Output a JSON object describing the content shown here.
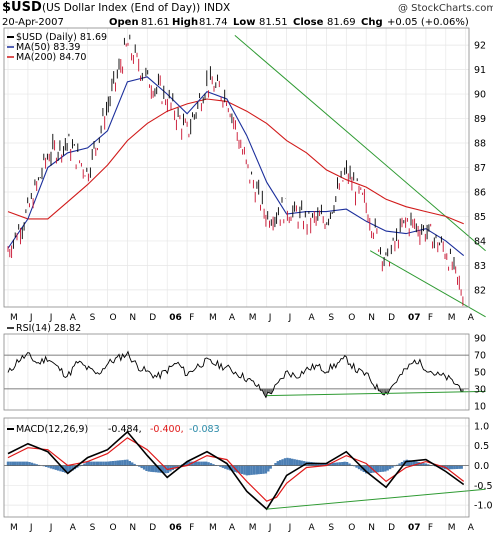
{
  "header": {
    "symbol": "$USD",
    "description": "(US Dollar Index (End of Day))",
    "exchange": "INDX",
    "source": "@ StockCharts.com",
    "date": "20-Apr-2007",
    "open_label": "Open",
    "open": "81.61",
    "high_label": "High",
    "high": "81.74",
    "low_label": "Low",
    "low": "81.51",
    "close_label": "Close",
    "close": "81.69",
    "chg_label": "Chg",
    "chg": "+0.05 (+0.06%)"
  },
  "legend": {
    "price": "$USD (Daily) 81.69",
    "ma50": "MA(50) 83.39",
    "ma200": "MA(200) 84.70",
    "rsi": "RSI(14) 28.82",
    "macd_name": "MACD(12,26,9)",
    "macd_v1": "-0.484,",
    "macd_v2": "-0.400,",
    "macd_v3": "-0.083"
  },
  "colors": {
    "price": "#000000",
    "price_down": "#c8102e",
    "ma50": "#1c2f9c",
    "ma200": "#d11b1b",
    "trend": "#2e9a32",
    "histogram": "#4c7fb4",
    "signal": "#e01a1a",
    "macd_v2": "#e01a1a",
    "macd_v3": "#2a8aa8",
    "rsi_fill": "#777777"
  },
  "chart_data": [
    {
      "type": "line",
      "name": "price",
      "x_ticks": [
        "M",
        "J",
        "J",
        "A",
        "S",
        "O",
        "N",
        "D",
        "06",
        "F",
        "M",
        "A",
        "M",
        "J",
        "J",
        "A",
        "S",
        "O",
        "N",
        "D",
        "07",
        "F",
        "M",
        "A"
      ],
      "y_ticks": [
        82,
        83,
        84,
        85,
        86,
        87,
        88,
        89,
        90,
        91,
        92
      ],
      "ylim": [
        81.3,
        92.7
      ],
      "series": [
        {
          "name": "$USD (Daily) 81.69",
          "points": [
            [
              0,
              83.6
            ],
            [
              1,
              85.2
            ],
            [
              2,
              87.5
            ],
            [
              3,
              88.0
            ],
            [
              4,
              86.8
            ],
            [
              5,
              89.5
            ],
            [
              6,
              92.0
            ],
            [
              7,
              90.6
            ],
            [
              8,
              89.8
            ],
            [
              9,
              88.4
            ],
            [
              10,
              90.5
            ],
            [
              11,
              89.9
            ],
            [
              12,
              87.0
            ],
            [
              13,
              85.0
            ],
            [
              14,
              85.3
            ],
            [
              15,
              84.8
            ],
            [
              16,
              84.9
            ],
            [
              17,
              86.8
            ],
            [
              18,
              85.4
            ],
            [
              19,
              83.1
            ],
            [
              20,
              84.8
            ],
            [
              21,
              84.4
            ],
            [
              22,
              83.6
            ],
            [
              22.9,
              81.7
            ]
          ]
        },
        {
          "name": "MA(50) 83.39",
          "points": [
            [
              0,
              83.7
            ],
            [
              1,
              84.9
            ],
            [
              2,
              87.0
            ],
            [
              3,
              87.6
            ],
            [
              4,
              87.8
            ],
            [
              5,
              88.5
            ],
            [
              6,
              90.5
            ],
            [
              7,
              90.7
            ],
            [
              8,
              90.0
            ],
            [
              9,
              89.2
            ],
            [
              10,
              90.1
            ],
            [
              11,
              89.8
            ],
            [
              12,
              88.3
            ],
            [
              13,
              86.4
            ],
            [
              14,
              85.1
            ],
            [
              15,
              85.2
            ],
            [
              16,
              85.2
            ],
            [
              17,
              85.3
            ],
            [
              18,
              84.8
            ],
            [
              19,
              84.4
            ],
            [
              20,
              84.3
            ],
            [
              21,
              84.5
            ],
            [
              22,
              84.0
            ],
            [
              22.9,
              83.4
            ]
          ]
        },
        {
          "name": "MA(200) 84.70",
          "points": [
            [
              0,
              85.2
            ],
            [
              1,
              84.9
            ],
            [
              2,
              84.9
            ],
            [
              3,
              85.6
            ],
            [
              4,
              86.3
            ],
            [
              5,
              87.1
            ],
            [
              6,
              88.1
            ],
            [
              7,
              88.8
            ],
            [
              8,
              89.3
            ],
            [
              9,
              89.6
            ],
            [
              10,
              89.8
            ],
            [
              11,
              89.7
            ],
            [
              12,
              89.3
            ],
            [
              13,
              88.8
            ],
            [
              14,
              88.1
            ],
            [
              15,
              87.6
            ],
            [
              16,
              86.9
            ],
            [
              17,
              86.5
            ],
            [
              18,
              86.2
            ],
            [
              19,
              85.7
            ],
            [
              20,
              85.4
            ],
            [
              21,
              85.2
            ],
            [
              22,
              85.0
            ],
            [
              22.9,
              84.7
            ]
          ]
        }
      ],
      "trendlines": [
        [
          [
            11.4,
            92.4
          ],
          [
            24,
            83.6
          ]
        ],
        [
          [
            18.2,
            83.6
          ],
          [
            24,
            80.9
          ]
        ]
      ]
    },
    {
      "type": "line",
      "name": "rsi",
      "y_ticks": [
        10,
        30,
        50,
        70,
        90
      ],
      "ylim": [
        5,
        95
      ],
      "reference_lines": [
        30,
        70
      ],
      "series": [
        {
          "name": "RSI(14) 28.82",
          "points": [
            [
              0,
              48
            ],
            [
              0.5,
              64
            ],
            [
              1,
              70
            ],
            [
              1.5,
              60
            ],
            [
              2,
              67
            ],
            [
              2.5,
              55
            ],
            [
              3,
              45
            ],
            [
              3.5,
              62
            ],
            [
              4,
              54
            ],
            [
              4.5,
              47
            ],
            [
              5,
              60
            ],
            [
              5.5,
              66
            ],
            [
              6,
              72
            ],
            [
              6.5,
              57
            ],
            [
              7,
              50
            ],
            [
              7.5,
              44
            ],
            [
              8,
              52
            ],
            [
              8.5,
              61
            ],
            [
              9,
              47
            ],
            [
              9.5,
              57
            ],
            [
              10,
              63
            ],
            [
              10.5,
              59
            ],
            [
              11,
              55
            ],
            [
              11.5,
              49
            ],
            [
              12,
              42
            ],
            [
              12.5,
              34
            ],
            [
              13,
              22
            ],
            [
              13.5,
              33
            ],
            [
              14,
              50
            ],
            [
              14.5,
              45
            ],
            [
              15,
              53
            ],
            [
              15.5,
              57
            ],
            [
              16,
              52
            ],
            [
              16.5,
              59
            ],
            [
              17,
              66
            ],
            [
              17.5,
              52
            ],
            [
              18,
              47
            ],
            [
              18.5,
              32
            ],
            [
              19,
              25
            ],
            [
              19.5,
              39
            ],
            [
              20,
              53
            ],
            [
              20.5,
              64
            ],
            [
              21,
              55
            ],
            [
              21.5,
              47
            ],
            [
              22,
              44
            ],
            [
              22.5,
              36
            ],
            [
              22.9,
              29
            ]
          ]
        }
      ],
      "trendlines": [
        [
          [
            13,
            22
          ],
          [
            24,
            27
          ]
        ]
      ]
    },
    {
      "type": "line",
      "name": "macd",
      "y_ticks": [
        -1.0,
        -0.5,
        0.0,
        0.5,
        1.0
      ],
      "ylim": [
        -1.3,
        1.2
      ],
      "series": [
        {
          "name": "MACD",
          "points": [
            [
              0,
              0.3
            ],
            [
              1,
              0.55
            ],
            [
              2,
              0.35
            ],
            [
              3,
              -0.2
            ],
            [
              4,
              0.2
            ],
            [
              5,
              0.4
            ],
            [
              6,
              0.85
            ],
            [
              7,
              0.25
            ],
            [
              8,
              -0.3
            ],
            [
              9,
              0.1
            ],
            [
              10,
              0.35
            ],
            [
              11,
              0.05
            ],
            [
              12,
              -0.65
            ],
            [
              13,
              -1.1
            ],
            [
              13.5,
              -0.7
            ],
            [
              14,
              -0.25
            ],
            [
              15,
              0.05
            ],
            [
              16,
              0.05
            ],
            [
              17,
              0.35
            ],
            [
              18,
              -0.15
            ],
            [
              19,
              -0.55
            ],
            [
              20,
              0.1
            ],
            [
              21,
              0.15
            ],
            [
              22,
              -0.15
            ],
            [
              22.9,
              -0.48
            ]
          ]
        },
        {
          "name": "Signal",
          "points": [
            [
              0,
              0.2
            ],
            [
              1,
              0.45
            ],
            [
              2,
              0.4
            ],
            [
              3,
              0.0
            ],
            [
              4,
              0.1
            ],
            [
              5,
              0.3
            ],
            [
              6,
              0.7
            ],
            [
              7,
              0.4
            ],
            [
              8,
              -0.1
            ],
            [
              9,
              0.0
            ],
            [
              10,
              0.25
            ],
            [
              11,
              0.15
            ],
            [
              12,
              -0.4
            ],
            [
              13,
              -0.9
            ],
            [
              13.5,
              -0.8
            ],
            [
              14,
              -0.45
            ],
            [
              15,
              -0.05
            ],
            [
              16,
              0.0
            ],
            [
              17,
              0.25
            ],
            [
              18,
              0.05
            ],
            [
              19,
              -0.4
            ],
            [
              20,
              -0.05
            ],
            [
              21,
              0.1
            ],
            [
              22,
              -0.05
            ],
            [
              22.9,
              -0.4
            ]
          ]
        }
      ],
      "trendlines": [
        [
          [
            13,
            -1.1
          ],
          [
            24,
            -0.6
          ]
        ]
      ]
    }
  ]
}
